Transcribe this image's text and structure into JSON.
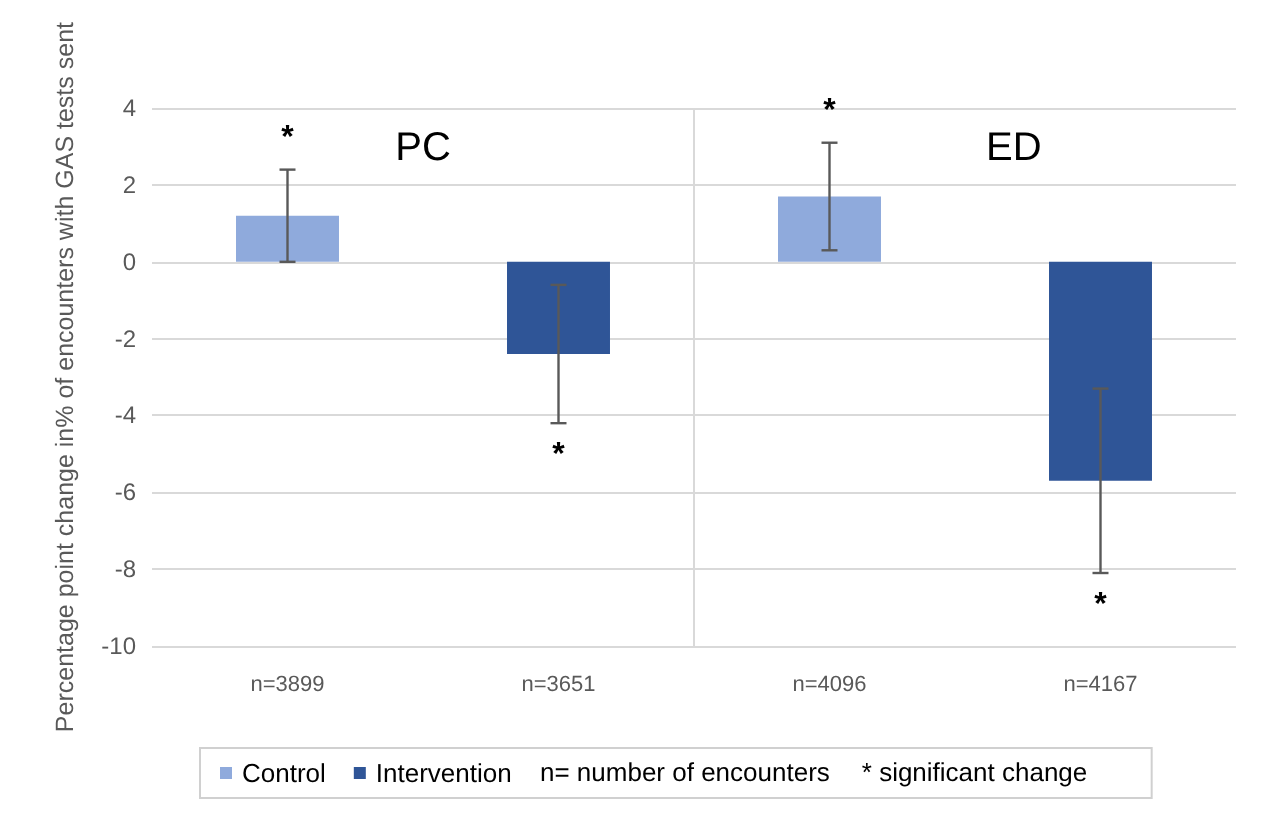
{
  "chart_data": {
    "type": "bar",
    "ylabel": "Percentage point change in% of encounters with GAS tests sent",
    "categories": [
      "n=3899",
      "n=3651",
      "n=4096",
      "n=4167"
    ],
    "stacked": true,
    "series": [
      {
        "name": "Control",
        "color": "#8faadc",
        "values": [
          1.2,
          null,
          1.7,
          null
        ],
        "errors": [
          1.2,
          null,
          [
            0.3,
            3.1
          ],
          null
        ]
      },
      {
        "name": "Intervention",
        "color": "#2f5597",
        "values": [
          null,
          -2.4,
          null,
          -5.7
        ],
        "errors": [
          null,
          [
            -4.2,
            -0.6
          ],
          null,
          [
            -8.1,
            -3.3
          ]
        ]
      }
    ],
    "ylim": [
      -10,
      4
    ],
    "yticks": [
      -10,
      -8,
      -6,
      -4,
      -2,
      0,
      2,
      4
    ],
    "grid": "y",
    "legend": "bottom",
    "annotations": [
      "PC",
      "ED",
      "n= number of encounters",
      "* significant change",
      "*",
      "*",
      "*",
      "*"
    ]
  }
}
